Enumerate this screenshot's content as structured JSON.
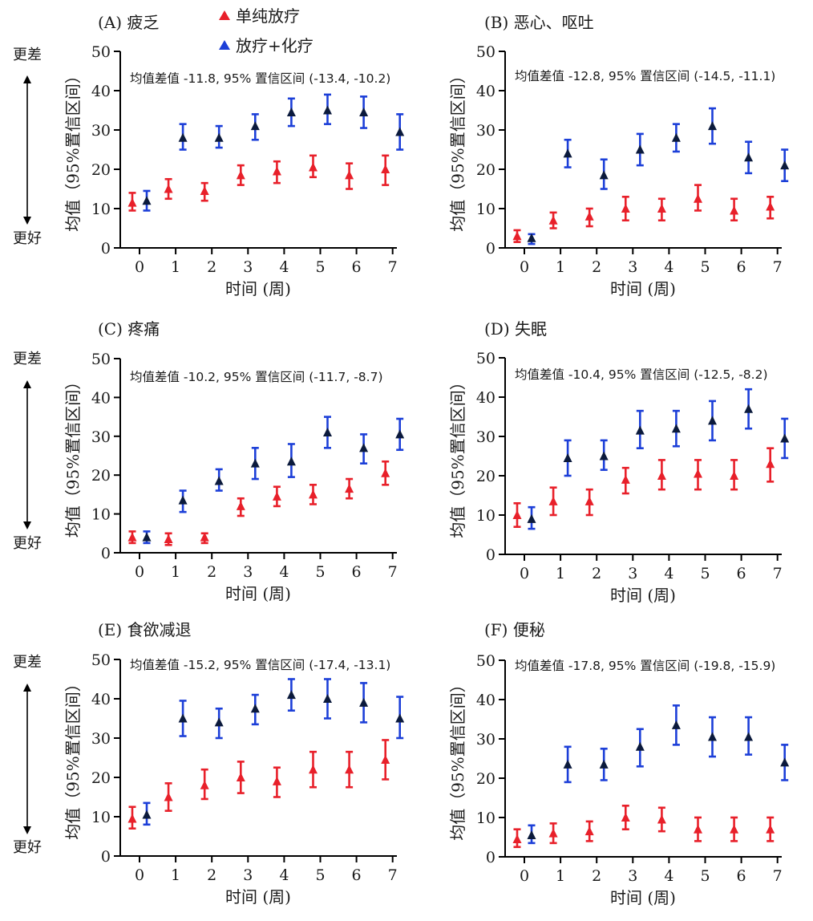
{
  "colors": {
    "rt": "#e8202a",
    "crt": "#1c3fd8",
    "crt_marker": "#0b1a3c"
  },
  "chart_data": {
    "type": "scatter",
    "error_bars": true,
    "legend": [
      {
        "key": "rt",
        "label": "单纯放疗",
        "marker": "triangle-icon"
      },
      {
        "key": "crt",
        "label": "放疗+化疗",
        "marker": "triangle-icon"
      }
    ],
    "y_direction": {
      "top": "更差",
      "bottom": "更好"
    },
    "xlabel": "时间 (周)",
    "ylabel": "均值（95%置信区间）",
    "ylim": [
      0,
      50
    ],
    "yticks": [
      0,
      10,
      20,
      30,
      40,
      50
    ],
    "xticks": [
      0,
      1,
      2,
      3,
      4,
      5,
      6,
      7
    ],
    "panels": [
      {
        "id": "A",
        "title": "(A) 疲乏",
        "annotation": "均值差值 -11.8, 95% 置信区间 (-13.4, -10.2)",
        "series": [
          {
            "key": "rt",
            "name": "单纯放疗",
            "points": [
              {
                "week": 0,
                "mean": 11.5,
                "lo": 9.5,
                "hi": 14
              },
              {
                "week": 1,
                "mean": 15,
                "lo": 12.5,
                "hi": 17.5
              },
              {
                "week": 2,
                "mean": 14.5,
                "lo": 12,
                "hi": 16.5
              },
              {
                "week": 3,
                "mean": 18.5,
                "lo": 16,
                "hi": 21
              },
              {
                "week": 4,
                "mean": 19.5,
                "lo": 16.5,
                "hi": 22
              },
              {
                "week": 5,
                "mean": 20.5,
                "lo": 18,
                "hi": 23.5
              },
              {
                "week": 6,
                "mean": 18.5,
                "lo": 15,
                "hi": 21.5
              },
              {
                "week": 7,
                "mean": 20,
                "lo": 16,
                "hi": 23.5
              }
            ]
          },
          {
            "key": "crt",
            "name": "放疗+化疗",
            "points": [
              {
                "week": 0,
                "mean": 12,
                "lo": 9.5,
                "hi": 14.5
              },
              {
                "week": 1,
                "mean": 28,
                "lo": 25,
                "hi": 31.5
              },
              {
                "week": 2,
                "mean": 28,
                "lo": 25.5,
                "hi": 31
              },
              {
                "week": 3,
                "mean": 31,
                "lo": 27.5,
                "hi": 34
              },
              {
                "week": 4,
                "mean": 34.5,
                "lo": 31,
                "hi": 38
              },
              {
                "week": 5,
                "mean": 35,
                "lo": 31.5,
                "hi": 39
              },
              {
                "week": 6,
                "mean": 34.5,
                "lo": 30.5,
                "hi": 38.5
              },
              {
                "week": 7,
                "mean": 29.5,
                "lo": 25,
                "hi": 34
              }
            ]
          }
        ]
      },
      {
        "id": "B",
        "title": "(B) 恶心、呕吐",
        "annotation": "均值差值 -12.8, 95% 置信区间 (-14.5, -11.1)",
        "series": [
          {
            "key": "rt",
            "name": "单纯放疗",
            "points": [
              {
                "week": 0,
                "mean": 3,
                "lo": 1.5,
                "hi": 4.5
              },
              {
                "week": 1,
                "mean": 7,
                "lo": 5,
                "hi": 9
              },
              {
                "week": 2,
                "mean": 8,
                "lo": 5.5,
                "hi": 10
              },
              {
                "week": 3,
                "mean": 10,
                "lo": 7,
                "hi": 13
              },
              {
                "week": 4,
                "mean": 10,
                "lo": 7,
                "hi": 12.5
              },
              {
                "week": 5,
                "mean": 12.5,
                "lo": 9.5,
                "hi": 16
              },
              {
                "week": 6,
                "mean": 9.5,
                "lo": 7,
                "hi": 12.5
              },
              {
                "week": 7,
                "mean": 10.5,
                "lo": 7.5,
                "hi": 13
              }
            ]
          },
          {
            "key": "crt",
            "name": "放疗+化疗",
            "points": [
              {
                "week": 0,
                "mean": 2.5,
                "lo": 1,
                "hi": 3.5
              },
              {
                "week": 1,
                "mean": 24,
                "lo": 20.5,
                "hi": 27.5
              },
              {
                "week": 2,
                "mean": 18.5,
                "lo": 15,
                "hi": 22.5
              },
              {
                "week": 3,
                "mean": 25,
                "lo": 21,
                "hi": 29
              },
              {
                "week": 4,
                "mean": 28,
                "lo": 24.5,
                "hi": 31.5
              },
              {
                "week": 5,
                "mean": 31,
                "lo": 26.5,
                "hi": 35.5
              },
              {
                "week": 6,
                "mean": 23,
                "lo": 19,
                "hi": 27
              },
              {
                "week": 7,
                "mean": 21,
                "lo": 17,
                "hi": 25
              }
            ]
          }
        ]
      },
      {
        "id": "C",
        "title": "(C) 疼痛",
        "annotation": "均值差值 -10.2, 95% 置信区间 (-11.7, -8.7)",
        "series": [
          {
            "key": "rt",
            "name": "单纯放疗",
            "points": [
              {
                "week": 0,
                "mean": 4,
                "lo": 2.5,
                "hi": 5.5
              },
              {
                "week": 1,
                "mean": 3.5,
                "lo": 2,
                "hi": 5
              },
              {
                "week": 2,
                "mean": 4,
                "lo": 2.5,
                "hi": 5
              },
              {
                "week": 3,
                "mean": 12,
                "lo": 9.5,
                "hi": 14
              },
              {
                "week": 4,
                "mean": 14.5,
                "lo": 12,
                "hi": 17
              },
              {
                "week": 5,
                "mean": 15,
                "lo": 12.5,
                "hi": 17.5
              },
              {
                "week": 6,
                "mean": 16.5,
                "lo": 14,
                "hi": 19
              },
              {
                "week": 7,
                "mean": 20.5,
                "lo": 17.5,
                "hi": 23.5
              }
            ]
          },
          {
            "key": "crt",
            "name": "放疗+化疗",
            "points": [
              {
                "week": 0,
                "mean": 4,
                "lo": 2.5,
                "hi": 5.5
              },
              {
                "week": 1,
                "mean": 13.5,
                "lo": 10.5,
                "hi": 16
              },
              {
                "week": 2,
                "mean": 18.5,
                "lo": 16,
                "hi": 21.5
              },
              {
                "week": 3,
                "mean": 23,
                "lo": 19,
                "hi": 27
              },
              {
                "week": 4,
                "mean": 23.5,
                "lo": 19.5,
                "hi": 28
              },
              {
                "week": 5,
                "mean": 31,
                "lo": 27,
                "hi": 35
              },
              {
                "week": 6,
                "mean": 27,
                "lo": 23,
                "hi": 30.5
              },
              {
                "week": 7,
                "mean": 30.5,
                "lo": 26.5,
                "hi": 34.5
              }
            ]
          }
        ]
      },
      {
        "id": "D",
        "title": "(D) 失眠",
        "annotation": "均值差值 -10.4, 95% 置信区间 (-12.5, -8.2)",
        "series": [
          {
            "key": "rt",
            "name": "单纯放疗",
            "points": [
              {
                "week": 0,
                "mean": 10,
                "lo": 7,
                "hi": 13
              },
              {
                "week": 1,
                "mean": 13.5,
                "lo": 10,
                "hi": 17
              },
              {
                "week": 2,
                "mean": 13.5,
                "lo": 10,
                "hi": 16.5
              },
              {
                "week": 3,
                "mean": 19,
                "lo": 15.5,
                "hi": 22
              },
              {
                "week": 4,
                "mean": 20,
                "lo": 16.5,
                "hi": 24
              },
              {
                "week": 5,
                "mean": 20.5,
                "lo": 16.5,
                "hi": 24
              },
              {
                "week": 6,
                "mean": 20,
                "lo": 16.5,
                "hi": 24
              },
              {
                "week": 7,
                "mean": 23,
                "lo": 18.5,
                "hi": 27
              }
            ]
          },
          {
            "key": "crt",
            "name": "放疗+化疗",
            "points": [
              {
                "week": 0,
                "mean": 9,
                "lo": 6.5,
                "hi": 12
              },
              {
                "week": 1,
                "mean": 24.5,
                "lo": 20,
                "hi": 29
              },
              {
                "week": 2,
                "mean": 25,
                "lo": 21.5,
                "hi": 29
              },
              {
                "week": 3,
                "mean": 31.5,
                "lo": 27,
                "hi": 36.5
              },
              {
                "week": 4,
                "mean": 32,
                "lo": 27.5,
                "hi": 36.5
              },
              {
                "week": 5,
                "mean": 34,
                "lo": 29,
                "hi": 39
              },
              {
                "week": 6,
                "mean": 37,
                "lo": 32,
                "hi": 42
              },
              {
                "week": 7,
                "mean": 29.5,
                "lo": 24.5,
                "hi": 34.5
              }
            ]
          }
        ]
      },
      {
        "id": "E",
        "title": "(E) 食欲减退",
        "annotation": "均值差值 -15.2, 95% 置信区间 (-17.4, -13.1)",
        "series": [
          {
            "key": "rt",
            "name": "单纯放疗",
            "points": [
              {
                "week": 0,
                "mean": 9.5,
                "lo": 7,
                "hi": 12.5
              },
              {
                "week": 1,
                "mean": 15,
                "lo": 11.5,
                "hi": 18.5
              },
              {
                "week": 2,
                "mean": 18,
                "lo": 14.5,
                "hi": 22
              },
              {
                "week": 3,
                "mean": 20,
                "lo": 16,
                "hi": 24
              },
              {
                "week": 4,
                "mean": 19,
                "lo": 15,
                "hi": 22.5
              },
              {
                "week": 5,
                "mean": 22,
                "lo": 17.5,
                "hi": 26.5
              },
              {
                "week": 6,
                "mean": 22,
                "lo": 17.5,
                "hi": 26.5
              },
              {
                "week": 7,
                "mean": 24.5,
                "lo": 19.5,
                "hi": 29.5
              }
            ]
          },
          {
            "key": "crt",
            "name": "放疗+化疗",
            "points": [
              {
                "week": 0,
                "mean": 10.5,
                "lo": 8,
                "hi": 13.5
              },
              {
                "week": 1,
                "mean": 35,
                "lo": 30.5,
                "hi": 39.5
              },
              {
                "week": 2,
                "mean": 34,
                "lo": 30,
                "hi": 37.5
              },
              {
                "week": 3,
                "mean": 37.5,
                "lo": 33.5,
                "hi": 41
              },
              {
                "week": 4,
                "mean": 41,
                "lo": 37,
                "hi": 45
              },
              {
                "week": 5,
                "mean": 40,
                "lo": 35,
                "hi": 45
              },
              {
                "week": 6,
                "mean": 39,
                "lo": 34,
                "hi": 44
              },
              {
                "week": 7,
                "mean": 35,
                "lo": 30,
                "hi": 40.5
              }
            ]
          }
        ]
      },
      {
        "id": "F",
        "title": "(F) 便秘",
        "annotation": "均值差值 -17.8, 95% 置信区间 (-19.8, -15.9)",
        "series": [
          {
            "key": "rt",
            "name": "单纯放疗",
            "points": [
              {
                "week": 0,
                "mean": 4.5,
                "lo": 2.5,
                "hi": 7
              },
              {
                "week": 1,
                "mean": 6,
                "lo": 3.5,
                "hi": 8.5
              },
              {
                "week": 2,
                "mean": 6.5,
                "lo": 4,
                "hi": 9
              },
              {
                "week": 3,
                "mean": 10,
                "lo": 7,
                "hi": 13
              },
              {
                "week": 4,
                "mean": 9.5,
                "lo": 6.5,
                "hi": 12.5
              },
              {
                "week": 5,
                "mean": 7,
                "lo": 4,
                "hi": 10
              },
              {
                "week": 6,
                "mean": 7,
                "lo": 4,
                "hi": 10
              },
              {
                "week": 7,
                "mean": 7,
                "lo": 4,
                "hi": 10
              }
            ]
          },
          {
            "key": "crt",
            "name": "放疗+化疗",
            "points": [
              {
                "week": 0,
                "mean": 5.5,
                "lo": 3.5,
                "hi": 8
              },
              {
                "week": 1,
                "mean": 23.5,
                "lo": 19,
                "hi": 28
              },
              {
                "week": 2,
                "mean": 23.5,
                "lo": 19.5,
                "hi": 27.5
              },
              {
                "week": 3,
                "mean": 28,
                "lo": 23,
                "hi": 32.5
              },
              {
                "week": 4,
                "mean": 33.5,
                "lo": 28.5,
                "hi": 38.5
              },
              {
                "week": 5,
                "mean": 30.5,
                "lo": 25.5,
                "hi": 35.5
              },
              {
                "week": 6,
                "mean": 30.5,
                "lo": 26,
                "hi": 35.5
              },
              {
                "week": 7,
                "mean": 24,
                "lo": 19.5,
                "hi": 28.5
              }
            ]
          }
        ]
      }
    ]
  }
}
